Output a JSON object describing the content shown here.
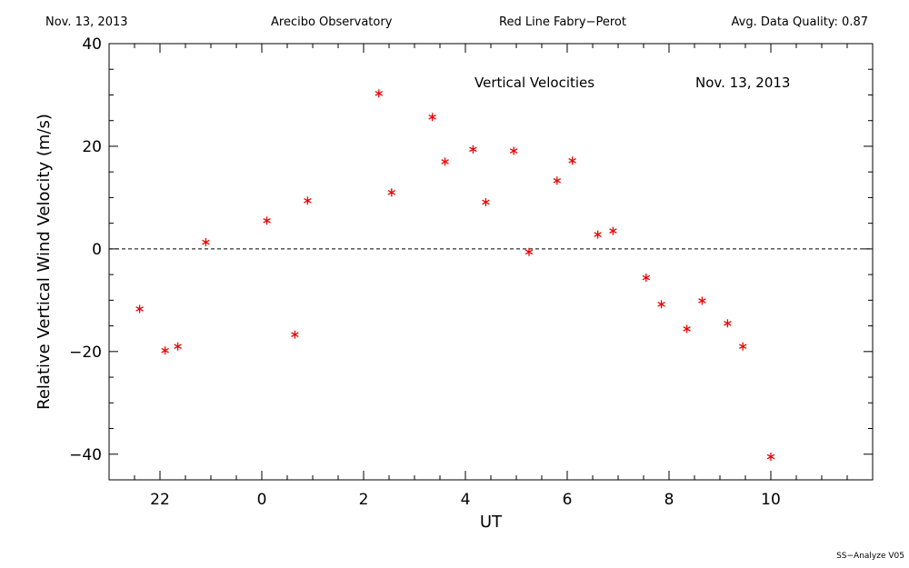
{
  "header": {
    "date": "Nov. 13, 2013",
    "observatory": "Arecibo Observatory",
    "instrument": "Red Line Fabry−Perot",
    "quality": "Avg. Data Quality: 0.87"
  },
  "footer": {
    "version": "SS−Analyze V05"
  },
  "chart_data": {
    "type": "scatter",
    "title": "Vertical Velocities",
    "subtitle": "Nov. 13, 2013",
    "xlabel": "UT",
    "ylabel": "Relative Vertical Wind Velocity (m/s)",
    "xlim": [
      -3,
      12
    ],
    "ylim": [
      -45,
      40
    ],
    "x_ticks": [
      22,
      0,
      2,
      4,
      6,
      8,
      10
    ],
    "y_ticks": [
      40,
      20,
      0,
      -20,
      -40
    ],
    "marker": "asterisk",
    "marker_color": "#ee0000",
    "zero_line": "dashed",
    "series": [
      {
        "x": [
          21.6,
          22.1,
          22.35,
          22.9,
          0.1,
          0.65,
          0.9,
          2.3,
          2.55,
          3.35,
          3.6,
          4.15,
          4.4,
          4.95,
          5.25,
          5.8,
          6.1,
          6.6,
          6.9,
          7.55,
          7.85,
          8.35,
          8.65,
          9.15,
          9.45,
          10.0
        ],
        "y": [
          -11.7,
          -19.8,
          -19.0,
          1.3,
          5.5,
          -16.7,
          9.4,
          30.3,
          11.0,
          25.7,
          17.0,
          19.4,
          9.1,
          19.1,
          -0.6,
          13.3,
          17.2,
          2.8,
          3.5,
          -5.6,
          -10.8,
          -15.6,
          -10.1,
          -14.5,
          -19.0,
          -40.5
        ]
      }
    ]
  }
}
